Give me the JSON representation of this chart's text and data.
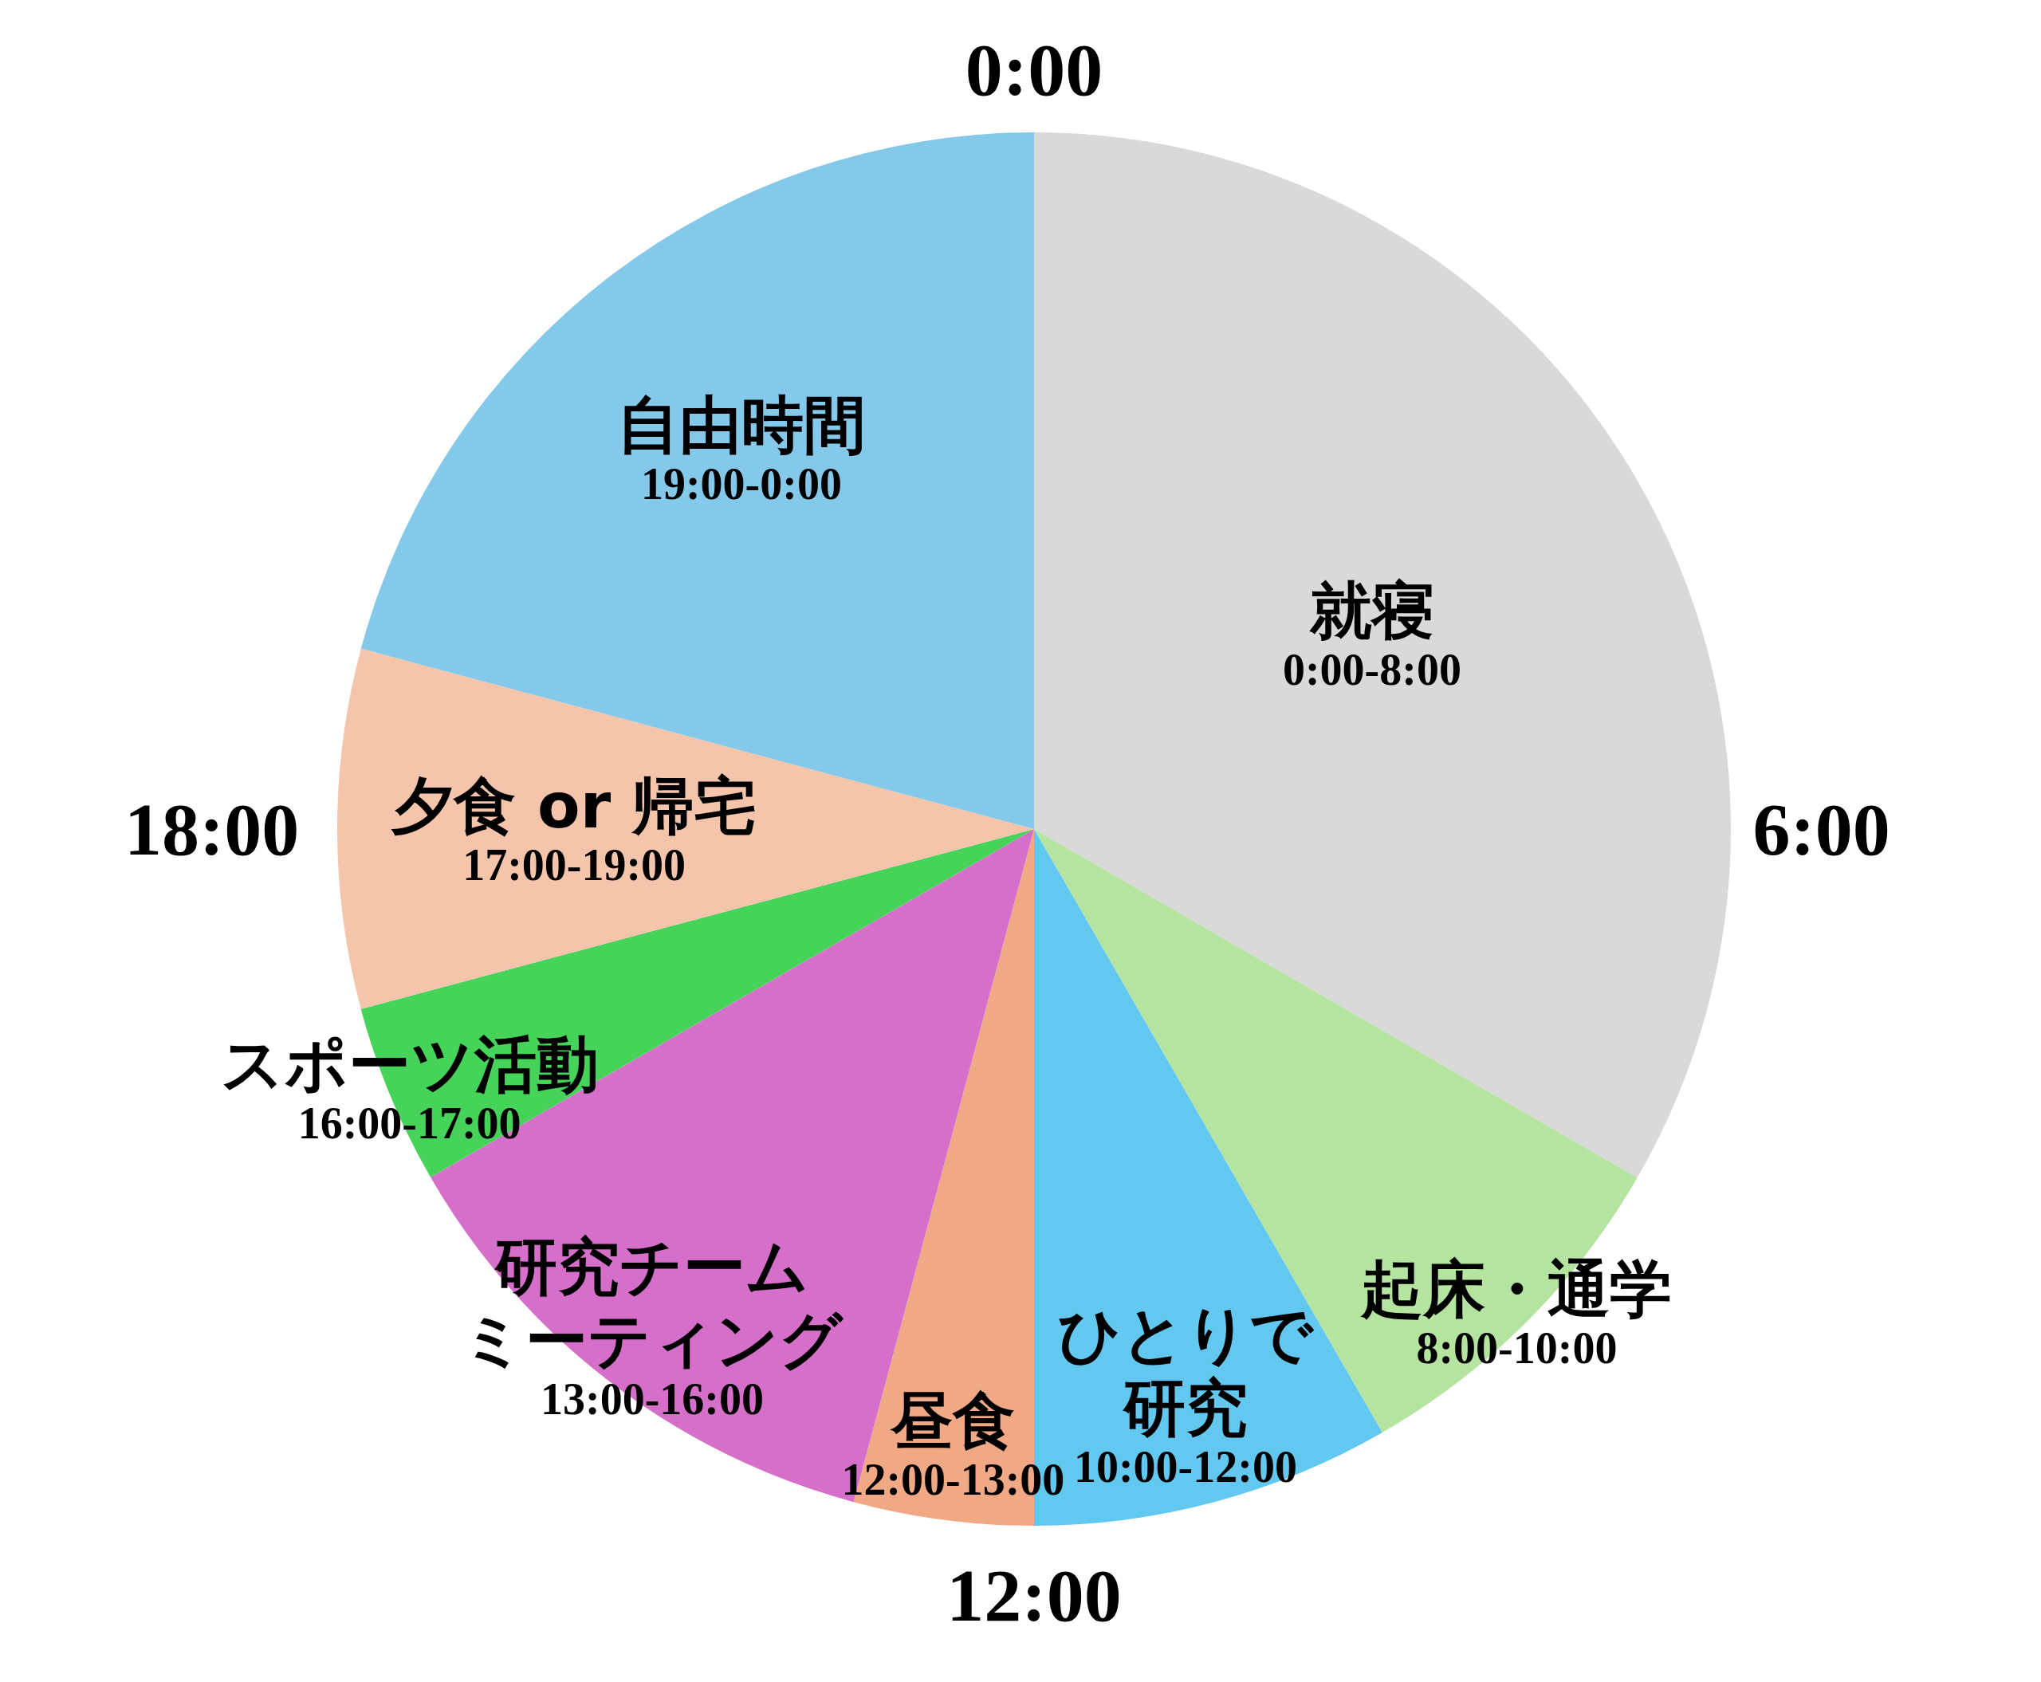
{
  "chart_data": {
    "type": "pie",
    "categories": [
      "就寝",
      "起床・通学",
      "ひとりで研究",
      "昼食",
      "研究チームミーティング",
      "スポーツ活動",
      "夕食 or 帰宅",
      "自由時間"
    ],
    "values": [
      33.34,
      8.33,
      8.33,
      4.17,
      12.5,
      4.17,
      8.33,
      20.83
    ],
    "value_labels": [
      "0:00-8:00",
      "8:00-10:00",
      "10:00-12:00",
      "12:00-13:00",
      "13:00-16:00",
      "16:00-17:00",
      "17:00-19:00",
      "19:00-0:00"
    ],
    "colors": [
      "#d9d9d9",
      "#b5e3a0",
      "#62c8f0",
      "#f0a984",
      "#d66fca",
      "#45d35a",
      "#f4c5aa",
      "#84c9e9"
    ],
    "annotations": [
      "0:00",
      "6:00",
      "12:00",
      "18:00"
    ]
  }
}
